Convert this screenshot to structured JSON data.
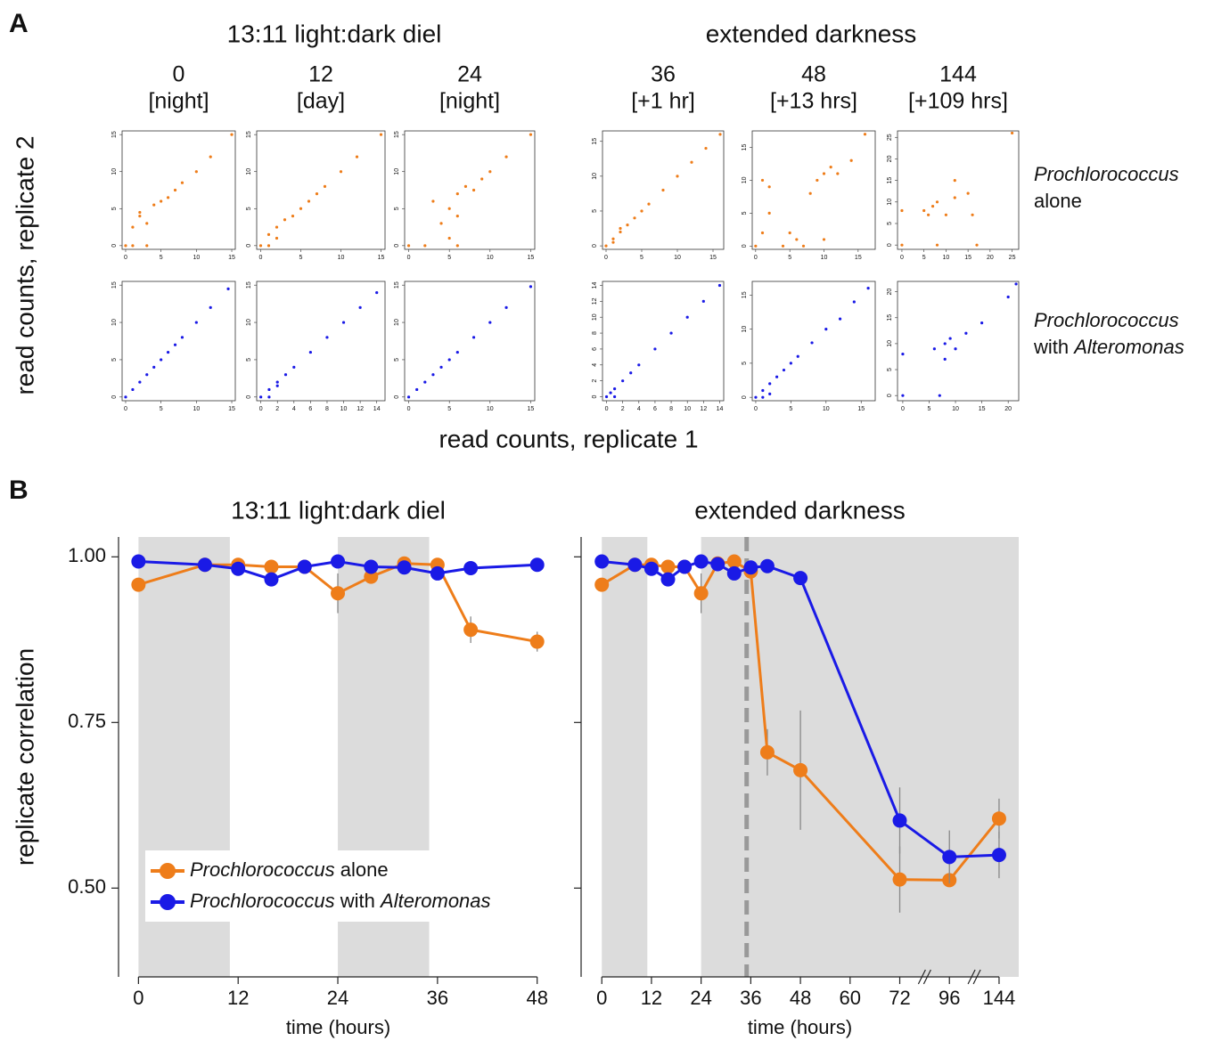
{
  "figure": {
    "panel_a": "A",
    "panel_b": "B",
    "group_titles": [
      "13:11 light:dark diel",
      "extended darkness"
    ],
    "row_labels": [
      [
        "Prochlorococcus",
        "alone"
      ],
      [
        "Prochlorococcus",
        "with Alteromonas"
      ]
    ],
    "xlabel": "read counts, replicate 1",
    "ylabel": "read counts, replicate 2"
  },
  "chart_data": [
    {
      "type": "scatter",
      "title": "0",
      "subtitle": "[night]",
      "color": "#ee7d1a",
      "xlim": [
        -0.5,
        15.5
      ],
      "ylim": [
        -0.5,
        15.5
      ],
      "xticks": [
        0,
        5,
        10,
        15
      ],
      "yticks": [
        0,
        5,
        10,
        15
      ],
      "x": [
        0,
        1,
        2,
        3,
        4,
        5,
        6,
        7,
        8,
        10,
        12,
        15,
        1,
        3,
        2
      ],
      "y": [
        0,
        2.5,
        4,
        3,
        5.5,
        6,
        6.5,
        7.5,
        8.5,
        10,
        12,
        15,
        0,
        0,
        4.5
      ]
    },
    {
      "type": "scatter",
      "title": "12",
      "subtitle": "[day]",
      "color": "#ee7d1a",
      "xlim": [
        -0.5,
        15.5
      ],
      "ylim": [
        -0.5,
        15.5
      ],
      "xticks": [
        0,
        5,
        10,
        15
      ],
      "yticks": [
        0,
        5,
        10,
        15
      ],
      "x": [
        0,
        1,
        2,
        3,
        4,
        5,
        6,
        7,
        8,
        10,
        12,
        15,
        1,
        2
      ],
      "y": [
        0,
        1.5,
        2.5,
        3.5,
        4,
        5,
        6,
        7,
        8,
        10,
        12,
        15,
        0,
        1
      ]
    },
    {
      "type": "scatter",
      "title": "24",
      "subtitle": "[night]",
      "color": "#ee7d1a",
      "xlim": [
        -0.5,
        15.5
      ],
      "ylim": [
        -0.5,
        15.5
      ],
      "xticks": [
        0,
        5,
        10,
        15
      ],
      "yticks": [
        0,
        5,
        10,
        15
      ],
      "x": [
        0,
        2,
        4,
        5,
        6,
        6,
        7,
        8,
        9,
        10,
        12,
        15,
        3,
        6,
        5
      ],
      "y": [
        0,
        0,
        3,
        5,
        4,
        7,
        8,
        7.5,
        9,
        10,
        12,
        15,
        6,
        0,
        1
      ]
    },
    {
      "type": "scatter",
      "title": "36",
      "subtitle": "[+1 hr]",
      "color": "#ee7d1a",
      "xlim": [
        -0.5,
        16.5
      ],
      "ylim": [
        -0.5,
        16.5
      ],
      "xticks": [
        0,
        5,
        10,
        15
      ],
      "yticks": [
        0,
        5,
        10,
        15
      ],
      "x": [
        0,
        1,
        2,
        3,
        4,
        5,
        6,
        8,
        10,
        12,
        14,
        16,
        1,
        2
      ],
      "y": [
        0,
        1,
        2.5,
        3,
        4,
        5,
        6,
        8,
        10,
        12,
        14,
        16,
        0.5,
        2
      ]
    },
    {
      "type": "scatter",
      "title": "48",
      "subtitle": "[+13 hrs]",
      "color": "#ee7d1a",
      "xlim": [
        -0.5,
        17.5
      ],
      "ylim": [
        -0.5,
        17.5
      ],
      "xticks": [
        0,
        5,
        10,
        15
      ],
      "yticks": [
        0,
        5,
        10,
        15
      ],
      "x": [
        0,
        1,
        2,
        4,
        6,
        8,
        9,
        10,
        11,
        12,
        14,
        16,
        1,
        5,
        10,
        2,
        7
      ],
      "y": [
        0,
        10,
        9,
        0,
        1,
        8,
        10,
        11,
        12,
        11,
        13,
        17,
        2,
        2,
        1,
        5,
        0
      ]
    },
    {
      "type": "scatter",
      "title": "144",
      "subtitle": "[+109 hrs]",
      "color": "#ee7d1a",
      "xlim": [
        -1,
        26.5
      ],
      "ylim": [
        -1,
        26.5
      ],
      "xticks": [
        0,
        5,
        10,
        15,
        20,
        25
      ],
      "yticks": [
        0,
        5,
        10,
        15,
        20,
        25
      ],
      "x": [
        0,
        0,
        5,
        6,
        7,
        8,
        10,
        12,
        15,
        16,
        17,
        25,
        8,
        12
      ],
      "y": [
        0,
        8,
        8,
        7,
        9,
        10,
        7,
        11,
        12,
        7,
        0,
        26,
        0,
        15
      ]
    },
    {
      "type": "scatter",
      "color": "#1a1ae6",
      "xlim": [
        -0.5,
        15.5
      ],
      "ylim": [
        -0.5,
        15.5
      ],
      "xticks": [
        0,
        5,
        10,
        15
      ],
      "yticks": [
        0,
        5,
        10,
        15
      ],
      "x": [
        0,
        1,
        2,
        3,
        4,
        5,
        6,
        7,
        8,
        10,
        12,
        14.5
      ],
      "y": [
        0,
        1,
        2,
        3,
        4,
        5,
        6,
        7,
        8,
        10,
        12,
        14.5
      ]
    },
    {
      "type": "scatter",
      "color": "#1a1ae6",
      "xlim": [
        -0.5,
        15
      ],
      "ylim": [
        -0.5,
        15.5
      ],
      "xticks": [
        0,
        2,
        4,
        6,
        8,
        10,
        12,
        14
      ],
      "yticks": [
        0,
        5,
        10,
        15
      ],
      "x": [
        0,
        1,
        2,
        3,
        4,
        6,
        8,
        10,
        12,
        14,
        1,
        2
      ],
      "y": [
        0,
        1,
        2,
        3,
        4,
        6,
        8,
        10,
        12,
        14,
        0,
        1.5
      ]
    },
    {
      "type": "scatter",
      "color": "#1a1ae6",
      "xlim": [
        -0.5,
        15.5
      ],
      "ylim": [
        -0.5,
        15.5
      ],
      "xticks": [
        0,
        5,
        10,
        15
      ],
      "yticks": [
        0,
        5,
        10,
        15
      ],
      "x": [
        0,
        1,
        2,
        3,
        4,
        5,
        6,
        8,
        10,
        12,
        15
      ],
      "y": [
        0,
        1,
        2,
        3,
        4,
        5,
        6,
        8,
        10,
        12,
        14.8
      ]
    },
    {
      "type": "scatter",
      "color": "#1a1ae6",
      "xlim": [
        -0.5,
        14.5
      ],
      "ylim": [
        -0.5,
        14.5
      ],
      "xticks": [
        0,
        2,
        4,
        6,
        8,
        10,
        12,
        14
      ],
      "yticks": [
        0,
        2,
        4,
        6,
        8,
        10,
        12,
        14
      ],
      "x": [
        0,
        0.5,
        1,
        2,
        3,
        4,
        6,
        8,
        10,
        12,
        14,
        1
      ],
      "y": [
        0,
        0.5,
        1,
        2,
        3,
        4,
        6,
        8,
        10,
        12,
        14,
        0
      ]
    },
    {
      "type": "scatter",
      "color": "#1a1ae6",
      "xlim": [
        -0.5,
        17
      ],
      "ylim": [
        -0.5,
        17
      ],
      "xticks": [
        0,
        5,
        10,
        15
      ],
      "yticks": [
        0,
        5,
        10,
        15
      ],
      "x": [
        0,
        1,
        2,
        3,
        4,
        5,
        6,
        8,
        10,
        12,
        14,
        16,
        1,
        2
      ],
      "y": [
        0,
        1,
        2,
        3,
        4,
        5,
        6,
        8,
        10,
        11.5,
        14,
        16,
        0,
        0.5
      ]
    },
    {
      "type": "scatter",
      "color": "#1a1ae6",
      "xlim": [
        -1,
        22
      ],
      "ylim": [
        -1,
        22
      ],
      "xticks": [
        0,
        5,
        10,
        15,
        20
      ],
      "yticks": [
        0,
        5,
        10,
        15,
        20
      ],
      "x": [
        0,
        0,
        6,
        7,
        8,
        8,
        9,
        10,
        12,
        15,
        20,
        21.5
      ],
      "y": [
        0,
        8,
        9,
        0,
        7,
        10,
        11,
        9,
        12,
        14,
        19,
        21.5
      ]
    },
    {
      "type": "line",
      "title": "13:11 light:dark diel",
      "xlabel": "time (hours)",
      "ylabel": "replicate correlation",
      "legend": "lower left",
      "xlim": [
        -2.4,
        50.5
      ],
      "ylim": [
        0.366,
        1.03
      ],
      "xticks": [
        0,
        12,
        24,
        36,
        48
      ],
      "yticks": [
        {
          "value": 0.5,
          "label": "0.50"
        },
        {
          "value": 0.75,
          "label": "0.75"
        },
        {
          "value": 1,
          "label": "1.00"
        }
      ],
      "show_ytick_labels": true,
      "shaded": [
        [
          0,
          11
        ],
        [
          24,
          35
        ]
      ],
      "x": [
        0,
        8,
        12,
        16,
        20,
        24,
        28,
        32,
        36,
        40,
        48
      ],
      "series": [
        {
          "name": "Prochlorococcus alone",
          "color": "#ee7d1a",
          "values": [
            0.958,
            0.988,
            0.988,
            0.985,
            0.985,
            0.945,
            0.97,
            0.99,
            0.988,
            0.89,
            0.872
          ],
          "errors": [
            0.01,
            0.004,
            0.004,
            0.004,
            0.004,
            0.03,
            0.01,
            0.004,
            0.004,
            0.02,
            0.015
          ]
        },
        {
          "name": "Prochlorococcus with Alteromonas",
          "color": "#1a1ae6",
          "values": [
            0.993,
            0.988,
            0.982,
            0.966,
            0.985,
            0.993,
            0.985,
            0.984,
            0.975,
            0.983,
            0.988
          ],
          "errors": [
            0.003,
            0.003,
            0.004,
            0.01,
            0.004,
            0.003,
            0.003,
            0.003,
            0.005,
            0.003,
            0.003
          ]
        }
      ]
    },
    {
      "type": "line",
      "title": "extended darkness",
      "xlabel": "time (hours)",
      "xlim": [
        -5,
        163
      ],
      "ylim": [
        0.366,
        1.03
      ],
      "xticks": [
        0,
        12,
        24,
        36,
        48,
        60,
        72,
        96,
        144
      ],
      "yticks": [
        0.5,
        0.75,
        1
      ],
      "show_ytick_labels": false,
      "axis_breaks": true,
      "shaded": [
        [
          0,
          11
        ],
        [
          24,
          163
        ]
      ],
      "vline": 35,
      "x": [
        0,
        8,
        12,
        16,
        20,
        24,
        28,
        32,
        36,
        40,
        48,
        72,
        96,
        144
      ],
      "series": [
        {
          "color": "#ee7d1a",
          "values": [
            0.958,
            0.988,
            0.988,
            0.985,
            0.985,
            0.945,
            0.99,
            0.993,
            0.978,
            0.705,
            0.678,
            0.513,
            0.512,
            0.605
          ],
          "errors": [
            0.01,
            0.004,
            0.004,
            0.004,
            0.004,
            0.03,
            0.004,
            0.004,
            0.005,
            0.035,
            0.09,
            0.05,
            0.01,
            0.03
          ]
        },
        {
          "color": "#1a1ae6",
          "values": [
            0.993,
            0.988,
            0.982,
            0.966,
            0.985,
            0.993,
            0.989,
            0.975,
            0.984,
            0.986,
            0.968,
            0.602,
            0.547,
            0.55
          ],
          "errors": [
            0.003,
            0.003,
            0.004,
            0.01,
            0.004,
            0.003,
            0.003,
            0.004,
            0.003,
            0.003,
            0.004,
            0.05,
            0.04,
            0.035
          ]
        }
      ]
    }
  ]
}
